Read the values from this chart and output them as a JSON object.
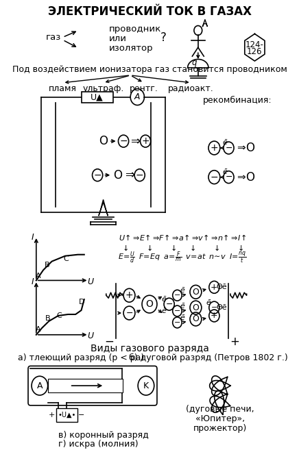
{
  "title": "ЭЛЕКТРИЧЕСКИЙ ТОК В ГАЗАХ",
  "bg_color": "#ffffff",
  "subtitle1": "Под воздействием ионизатора газ становится проводником",
  "ionizer_labels": [
    "пламя",
    "ультраф.",
    "рентг.",
    "радиоакт."
  ],
  "recomb_label": "рекомбинация:",
  "vidy_label": "Виды газового разряда",
  "a_label": "а) тлеющий разряд (p < pа)",
  "b_label": "б) дуговой разряд (Петров 1802 г.)",
  "v_label": "в) коронный разряд",
  "g_label": "г) искра (молния)",
  "arc_labels": [
    "(дуговые печи,",
    "«Юпитер»,",
    "прожектор)"
  ]
}
